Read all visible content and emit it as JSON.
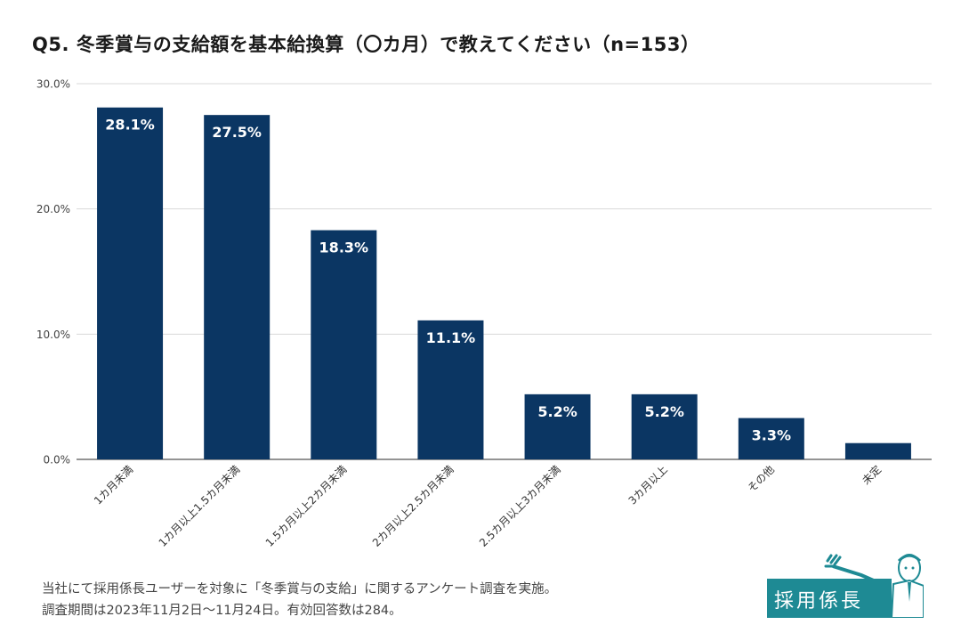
{
  "title": "Q5.  冬季賞与の支給額を基本給換算（〇カ月）で教えてください（n=153）",
  "chart_data": {
    "type": "bar",
    "title": "Q5.  冬季賞与の支給額を基本給換算（〇カ月）で教えてください（n=153）",
    "categories": [
      "1カ月未満",
      "1カ月以上1.5カ月未満",
      "1.5カ月以上2カ月未満",
      "2カ月以上2.5カ月未満",
      "2.5カ月以上3カ月未満",
      "3カ月以上",
      "その他",
      "未定"
    ],
    "values": [
      28.1,
      27.5,
      18.3,
      11.1,
      5.2,
      5.2,
      3.3,
      1.3
    ],
    "data_labels": [
      "28.1%",
      "27.5%",
      "18.3%",
      "11.1%",
      "5.2%",
      "5.2%",
      "3.3%",
      ""
    ],
    "y_ticks": [
      "0.0%",
      "10.0%",
      "20.0%",
      "30.0%"
    ],
    "y_tick_values": [
      0,
      10,
      20,
      30
    ],
    "ylim": [
      0,
      30
    ],
    "xlabel": "",
    "ylabel": "",
    "grid": true,
    "bar_color": "#0b3663"
  },
  "footnote": {
    "line1": "当社にて採用係長ユーザーを対象に「冬季賞与の支給」に関するアンケート調査を実施。",
    "line2": "調査期間は2023年11月2日〜11月24日。有効回答数は284。"
  },
  "logo": {
    "text": "採用係長",
    "color": "#1e8a94"
  }
}
